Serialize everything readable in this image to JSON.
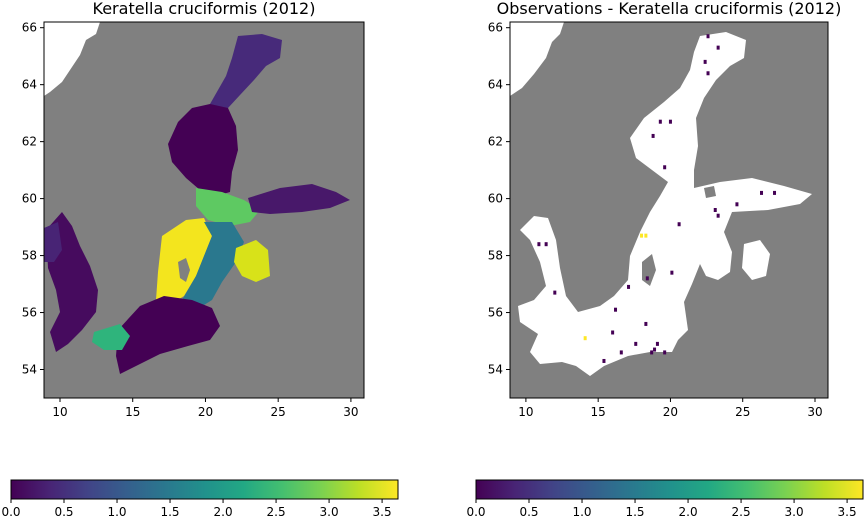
{
  "chart_data": [
    {
      "type": "heatmap",
      "title": "Keratella cruciformis (2012)",
      "xlabel": "",
      "ylabel": "",
      "xlim": [
        8.9,
        30.9
      ],
      "ylim": [
        53.0,
        66.2
      ],
      "xticks": [
        10,
        15,
        20,
        25,
        30
      ],
      "yticks": [
        54,
        56,
        58,
        60,
        62,
        64,
        66
      ],
      "colormap": "viridis",
      "colorbar": {
        "orientation": "horizontal",
        "range": [
          0.0,
          3.65
        ],
        "ticks": [
          "0.0",
          "0.5",
          "1.0",
          "1.5",
          "2.0",
          "2.5",
          "3.0",
          "3.5"
        ]
      },
      "land_color": "#808080",
      "nodata_color": "#ffffff",
      "value_regions": [
        {
          "region": "Bothnian Bay",
          "value": 0.6
        },
        {
          "region": "Bothnian Sea",
          "value": 0.4
        },
        {
          "region": "Aland Sea / Archipelago",
          "value": 2.5
        },
        {
          "region": "Gulf of Finland",
          "value": 0.5
        },
        {
          "region": "Western Gotland Basin",
          "value": 3.5
        },
        {
          "region": "Eastern Gotland Basin",
          "value": 1.5
        },
        {
          "region": "Gulf of Riga",
          "value": 3.4
        },
        {
          "region": "Bornholm Basin",
          "value": 0.2
        },
        {
          "region": "Arkona Basin",
          "value": 2.0
        },
        {
          "region": "Kattegat / Skagerrak",
          "value": 0.1
        }
      ]
    },
    {
      "type": "scatter",
      "title": "Observations - Keratella cruciformis (2012)",
      "xlabel": "",
      "ylabel": "",
      "xlim": [
        8.9,
        30.9
      ],
      "ylim": [
        53.0,
        66.2
      ],
      "xticks": [
        10,
        15,
        20,
        25,
        30
      ],
      "yticks": [
        54,
        56,
        58,
        60,
        62,
        64,
        66
      ],
      "colormap": "viridis",
      "colorbar": {
        "orientation": "horizontal",
        "range": [
          0.0,
          3.65
        ],
        "ticks": [
          "0.0",
          "0.5",
          "1.0",
          "1.5",
          "2.0",
          "2.5",
          "3.0",
          "3.5"
        ]
      },
      "land_color": "#808080",
      "sea_color": "#ffffff",
      "points": [
        {
          "lon": 22.6,
          "lat": 65.7,
          "value": 0.0
        },
        {
          "lon": 23.3,
          "lat": 65.3,
          "value": 0.0
        },
        {
          "lon": 22.4,
          "lat": 64.8,
          "value": 0.0
        },
        {
          "lon": 22.6,
          "lat": 64.4,
          "value": 0.0
        },
        {
          "lon": 19.3,
          "lat": 62.7,
          "value": 0.0
        },
        {
          "lon": 20.0,
          "lat": 62.7,
          "value": 0.0
        },
        {
          "lon": 18.8,
          "lat": 62.2,
          "value": 0.0
        },
        {
          "lon": 19.6,
          "lat": 61.1,
          "value": 0.0
        },
        {
          "lon": 23.1,
          "lat": 59.6,
          "value": 0.0
        },
        {
          "lon": 23.3,
          "lat": 59.4,
          "value": 0.0
        },
        {
          "lon": 24.6,
          "lat": 59.8,
          "value": 0.0
        },
        {
          "lon": 26.3,
          "lat": 60.2,
          "value": 0.0
        },
        {
          "lon": 27.2,
          "lat": 60.2,
          "value": 0.0
        },
        {
          "lon": 20.6,
          "lat": 59.1,
          "value": 0.0
        },
        {
          "lon": 10.9,
          "lat": 58.4,
          "value": 0.0
        },
        {
          "lon": 11.4,
          "lat": 58.4,
          "value": 0.0
        },
        {
          "lon": 18.0,
          "lat": 58.7,
          "value": 3.6
        },
        {
          "lon": 18.3,
          "lat": 58.7,
          "value": 3.5
        },
        {
          "lon": 18.4,
          "lat": 57.2,
          "value": 0.0
        },
        {
          "lon": 20.1,
          "lat": 57.4,
          "value": 0.0
        },
        {
          "lon": 17.1,
          "lat": 56.9,
          "value": 0.0
        },
        {
          "lon": 12.0,
          "lat": 56.7,
          "value": 0.0
        },
        {
          "lon": 16.2,
          "lat": 56.1,
          "value": 0.0
        },
        {
          "lon": 18.3,
          "lat": 55.6,
          "value": 0.0
        },
        {
          "lon": 16.0,
          "lat": 55.3,
          "value": 0.0
        },
        {
          "lon": 14.1,
          "lat": 55.1,
          "value": 3.6
        },
        {
          "lon": 17.6,
          "lat": 54.9,
          "value": 0.0
        },
        {
          "lon": 19.1,
          "lat": 54.9,
          "value": 0.0
        },
        {
          "lon": 18.9,
          "lat": 54.7,
          "value": 0.0
        },
        {
          "lon": 19.6,
          "lat": 54.6,
          "value": 0.0
        },
        {
          "lon": 16.6,
          "lat": 54.6,
          "value": 0.0
        },
        {
          "lon": 18.7,
          "lat": 54.6,
          "value": 0.0
        },
        {
          "lon": 15.4,
          "lat": 54.3,
          "value": 0.0
        }
      ]
    }
  ]
}
